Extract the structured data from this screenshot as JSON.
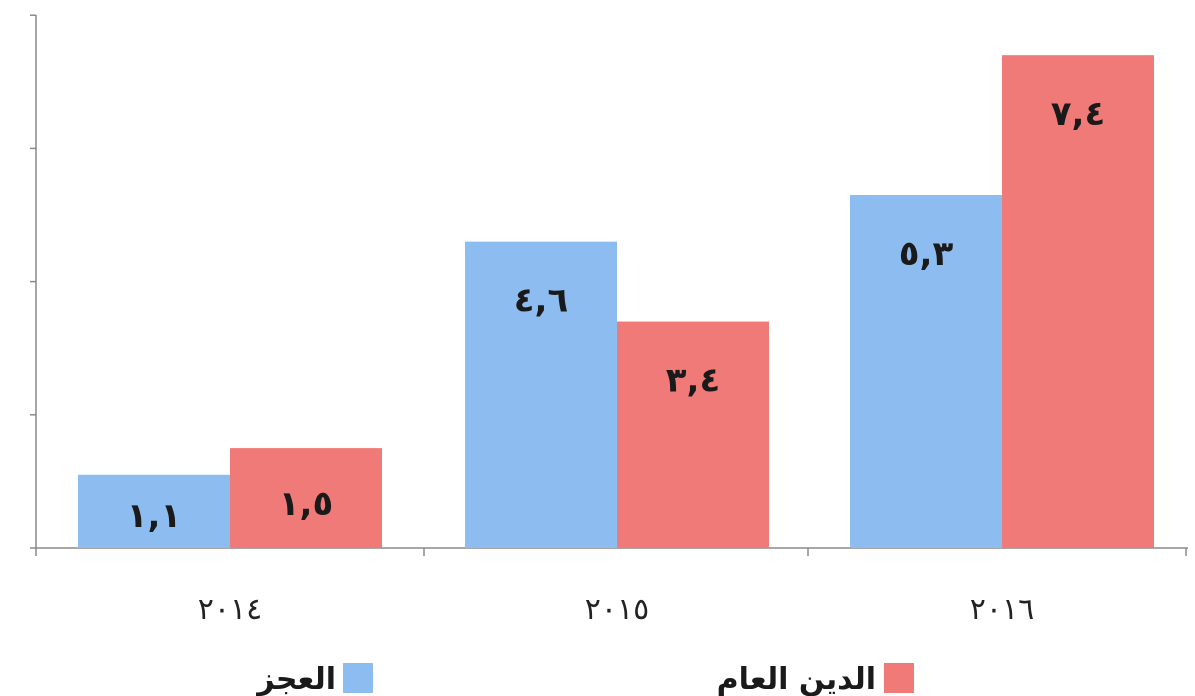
{
  "chart_data": {
    "type": "bar",
    "categories": [
      "٢٠١٤",
      "٢٠١٥",
      "٢٠١٦"
    ],
    "series": [
      {
        "name": "العجز",
        "values": [
          1.1,
          4.6,
          5.3
        ],
        "labels": [
          "١,١",
          "٤,٦",
          "٥,٣"
        ],
        "color": "#8cbcf0"
      },
      {
        "name": "الدين العام",
        "values": [
          1.5,
          3.4,
          7.4
        ],
        "labels": [
          "١,٥",
          "٣,٤",
          "٧,٤"
        ],
        "color": "#f07a78"
      }
    ],
    "ylim": [
      0,
      8
    ],
    "grid": false,
    "legend_position": "bottom"
  }
}
